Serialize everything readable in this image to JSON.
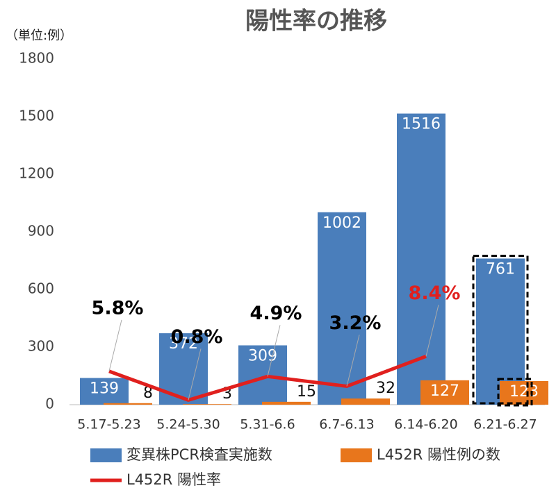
{
  "chart_data": {
    "type": "bar",
    "title": "陽性率の推移",
    "unit_label": "（単位:例）",
    "categories": [
      "5.17-5.23",
      "5.24-5.30",
      "5.31-6.6",
      "6.7-6.13",
      "6.14-6.20",
      "6.21-6.27"
    ],
    "series": [
      {
        "name": "変異株PCR検査実施数",
        "color": "#4a7ebb",
        "values": [
          139,
          372,
          309,
          1002,
          1516,
          761
        ]
      },
      {
        "name": "L452R 陽性例の数",
        "color": "#e8761c",
        "values": [
          8,
          3,
          15,
          32,
          127,
          123
        ]
      },
      {
        "name": "L452R 陽性率",
        "color": "#e0201e",
        "type": "line",
        "axis": "y2",
        "values": [
          5.8,
          0.8,
          4.9,
          3.2,
          8.4,
          null
        ],
        "value_labels": [
          "5.8%",
          "0.8%",
          "4.9%",
          "3.2%",
          "8.4%",
          null
        ]
      }
    ],
    "ylim": [
      0,
      1800
    ],
    "yticks": [
      0,
      300,
      600,
      900,
      1200,
      1500,
      1800
    ],
    "y2lim": [
      0,
      60
    ],
    "grid": false
  }
}
